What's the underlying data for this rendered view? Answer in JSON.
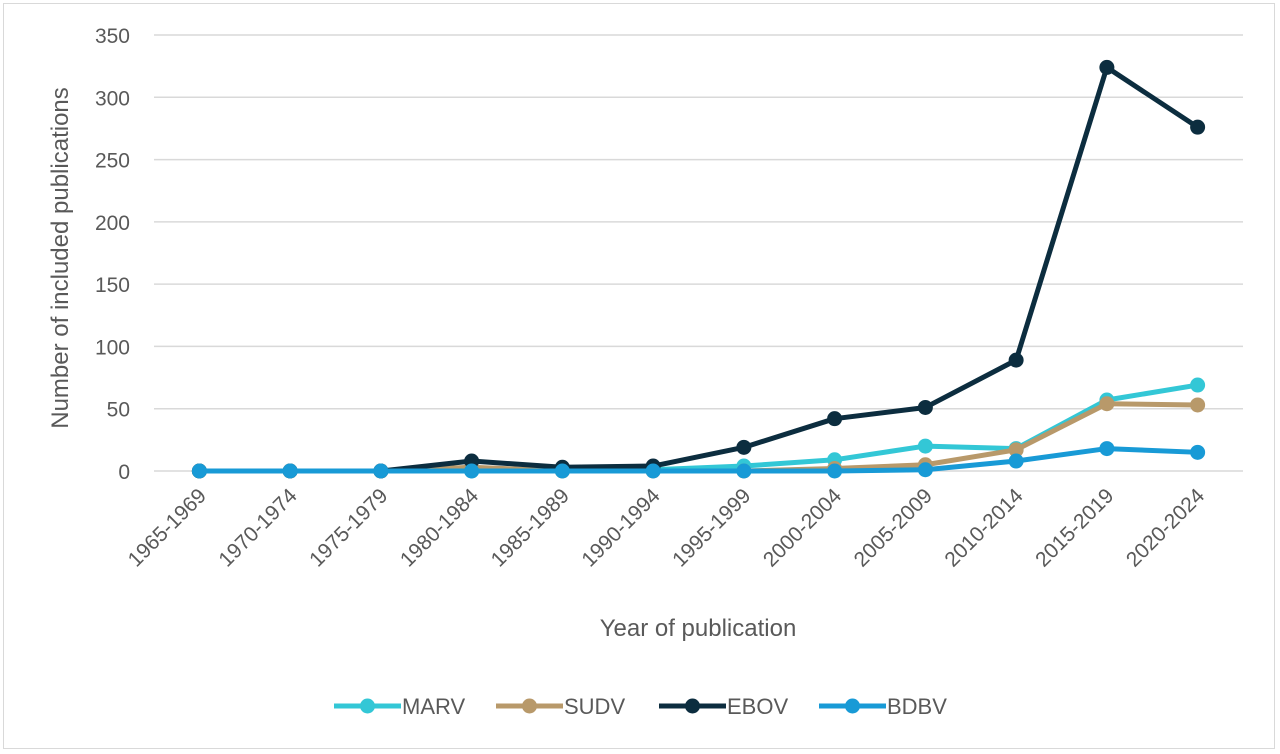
{
  "chart_data": {
    "type": "line",
    "xlabel": "Year of publication",
    "ylabel": "Number of included publications",
    "ylim": [
      0,
      350
    ],
    "yticks": [
      0,
      50,
      100,
      150,
      200,
      250,
      300,
      350
    ],
    "grid": true,
    "legend_position": "bottom",
    "categories": [
      "1965-1969",
      "1970-1974",
      "1975-1979",
      "1980-1984",
      "1985-1989",
      "1990-1994",
      "1995-1999",
      "2000-2004",
      "2005-2009",
      "2010-2014",
      "2015-2019",
      "2020-2024"
    ],
    "series": [
      {
        "name": "MARV",
        "color": "#33c7d6",
        "values": [
          0,
          0,
          0,
          0,
          0,
          1,
          4,
          9,
          20,
          18,
          57,
          69
        ]
      },
      {
        "name": "SUDV",
        "color": "#b8996a",
        "values": [
          0,
          0,
          0,
          3,
          0,
          0,
          0,
          2,
          5,
          17,
          54,
          53
        ]
      },
      {
        "name": "EBOV",
        "color": "#0c2d3f",
        "values": [
          0,
          0,
          0,
          8,
          3,
          4,
          19,
          42,
          51,
          89,
          324,
          276
        ]
      },
      {
        "name": "BDBV",
        "color": "#189ad6",
        "values": [
          0,
          0,
          0,
          0,
          0,
          0,
          0,
          0,
          1,
          8,
          18,
          15
        ]
      }
    ]
  }
}
